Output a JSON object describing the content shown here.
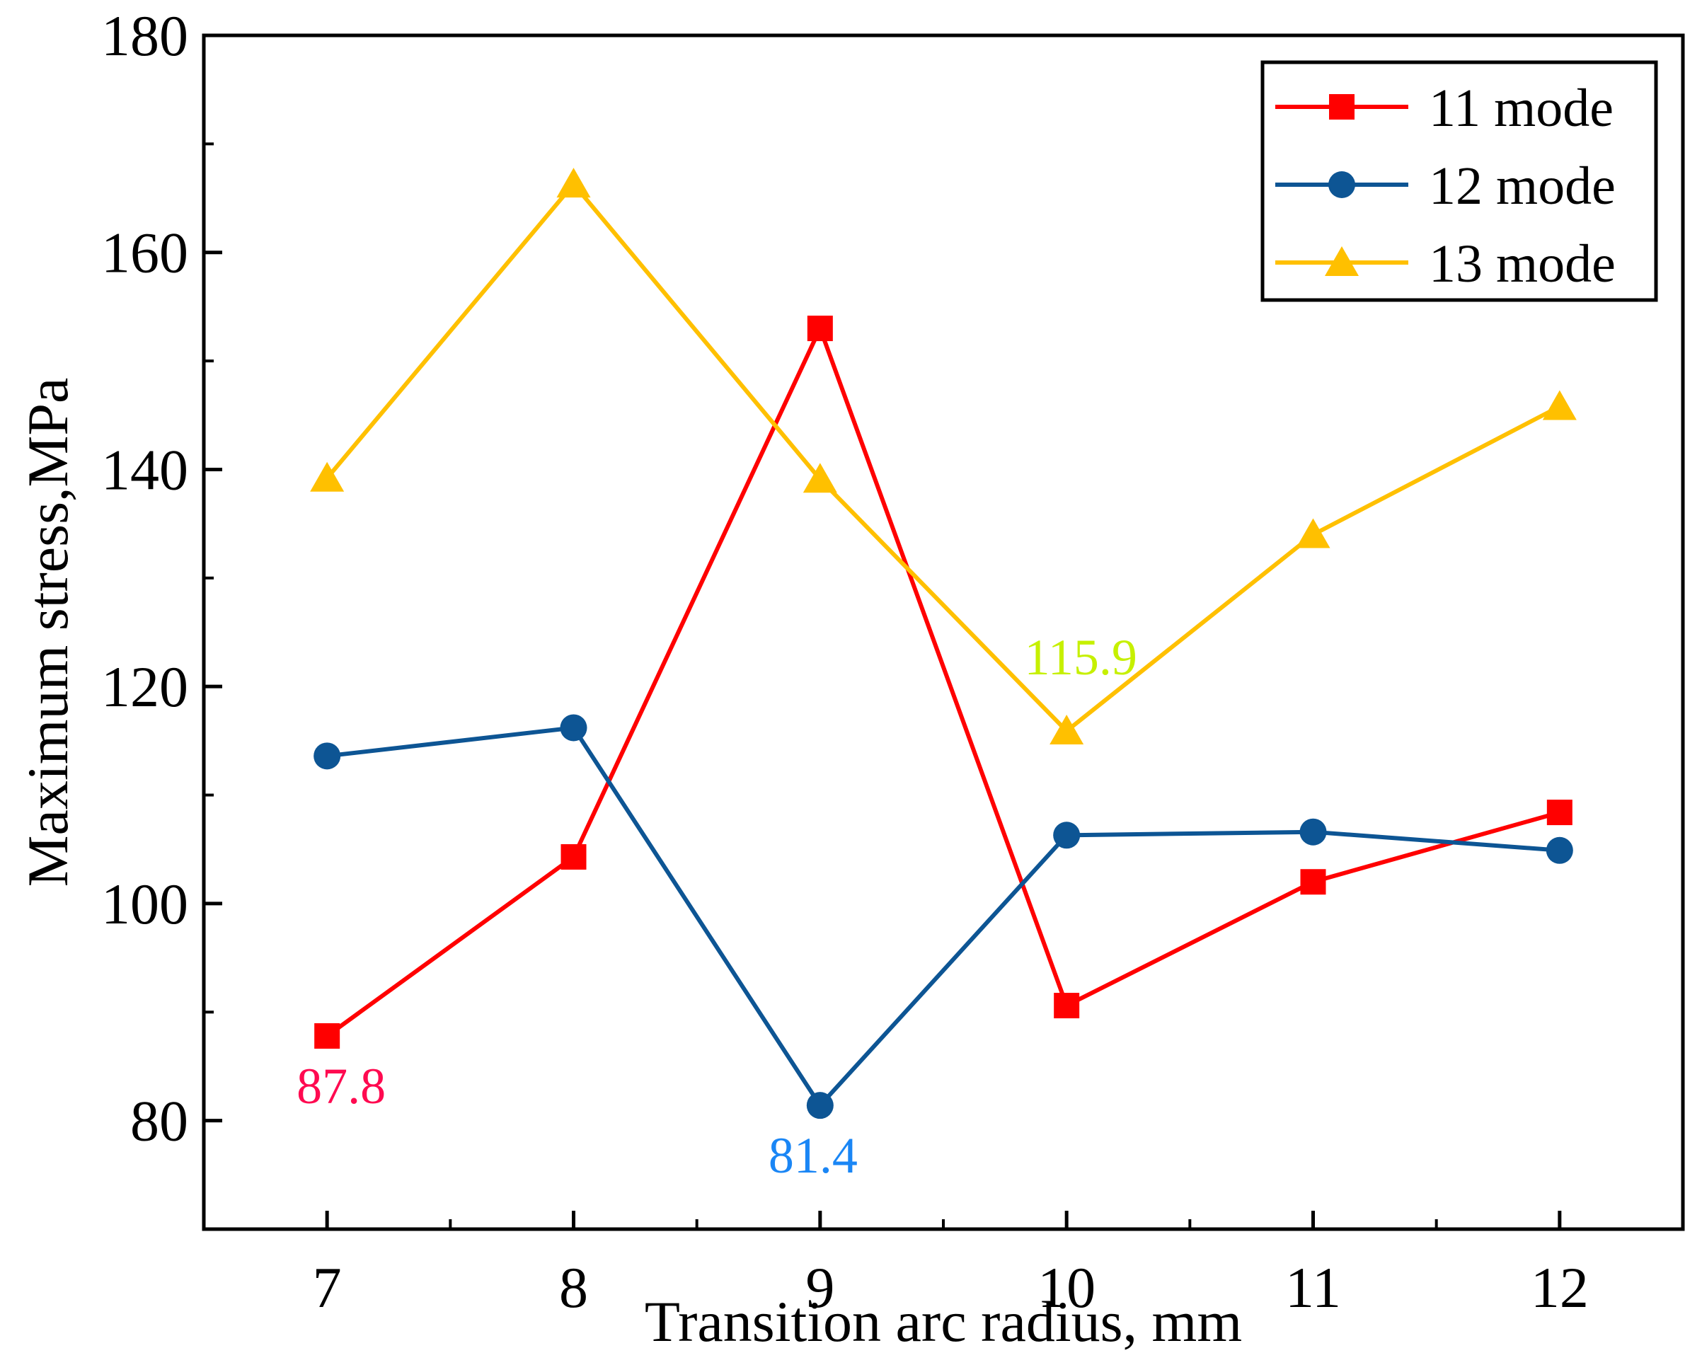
{
  "chart_data": {
    "type": "line",
    "title": "",
    "xlabel": "Transition arc radius, mm",
    "ylabel": "Maximum stress,MPa",
    "x": [
      7,
      8,
      9,
      10,
      11,
      12
    ],
    "xlim": [
      6.5,
      12.5
    ],
    "ylim": [
      70,
      180
    ],
    "xticks": [
      7,
      8,
      9,
      10,
      11,
      12
    ],
    "yticks": [
      80,
      100,
      120,
      140,
      160,
      180
    ],
    "grid": false,
    "legend_position": "top-right",
    "series": [
      {
        "name": "11 mode",
        "color": "#ff0000",
        "marker": "square",
        "values": [
          87.8,
          104.3,
          153.0,
          90.6,
          102.0,
          108.4
        ]
      },
      {
        "name": "12 mode",
        "color": "#0d5594",
        "marker": "circle",
        "values": [
          113.6,
          116.2,
          81.4,
          106.3,
          106.6,
          104.9
        ]
      },
      {
        "name": "13 mode",
        "color": "#ffc000",
        "marker": "triangle",
        "values": [
          139.2,
          166.3,
          139.1,
          115.9,
          134.0,
          145.8
        ]
      }
    ],
    "annotations": [
      {
        "text": "87.8",
        "x": 7,
        "y": 87.8,
        "color": "#ff0a50"
      },
      {
        "text": "81.4",
        "x": 9,
        "y": 81.4,
        "color": "#1a86f5"
      },
      {
        "text": "115.9",
        "x": 10,
        "y": 115.9,
        "color": "#c6f000"
      }
    ]
  }
}
